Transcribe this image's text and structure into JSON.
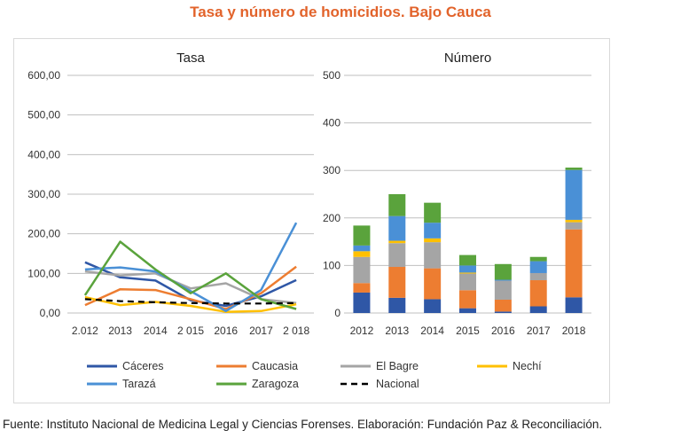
{
  "title": "Tasa y número de homicidios. Bajo Cauca",
  "title_color": "#e2632b",
  "source": "Fuente: Instituto Nacional de Medicina Legal y Ciencias Forenses. Elaboración: Fundación Paz & Reconciliación.",
  "chart_data": [
    {
      "type": "line",
      "title": "Tasa",
      "categories": [
        "2.012",
        "2013",
        "2014",
        "2 015",
        "2016",
        "2017",
        "2 018"
      ],
      "ylim": [
        0,
        600
      ],
      "yticks": [
        0,
        100,
        200,
        300,
        400,
        500,
        600
      ],
      "ytick_labels": [
        "0,00",
        "100,00",
        "200,00",
        "300,00",
        "400,00",
        "500,00",
        "600,00"
      ],
      "grid": true,
      "series": [
        {
          "name": "Cáceres",
          "color": "#2f57a6",
          "dash": false,
          "values": [
            128,
            90,
            82,
            32,
            18,
            42,
            83
          ]
        },
        {
          "name": "Caucasia",
          "color": "#ed7d31",
          "dash": false,
          "values": [
            20,
            60,
            58,
            35,
            10,
            50,
            117
          ]
        },
        {
          "name": "El Bagre",
          "color": "#a5a5a5",
          "dash": false,
          "values": [
            105,
            95,
            100,
            62,
            75,
            35,
            25
          ]
        },
        {
          "name": "Nechí",
          "color": "#ffc000",
          "dash": false,
          "values": [
            40,
            20,
            28,
            18,
            3,
            5,
            22
          ]
        },
        {
          "name": "Tarazá",
          "color": "#4a90d6",
          "dash": false,
          "values": [
            110,
            115,
            105,
            55,
            5,
            58,
            228
          ]
        },
        {
          "name": "Zaragoza",
          "color": "#5aa33c",
          "dash": false,
          "values": [
            45,
            180,
            110,
            50,
            100,
            35,
            10
          ]
        },
        {
          "name": "Nacional",
          "color": "#000000",
          "dash": true,
          "values": [
            35,
            30,
            27,
            25,
            24,
            24,
            25
          ]
        }
      ]
    },
    {
      "type": "bar",
      "stacked": true,
      "title": "Número",
      "categories": [
        "2012",
        "2013",
        "2014",
        "2015",
        "2016",
        "2017",
        "2018"
      ],
      "ylim": [
        0,
        500
      ],
      "yticks": [
        0,
        100,
        200,
        300,
        400,
        500
      ],
      "grid": true,
      "series": [
        {
          "name": "Cáceres",
          "color": "#2f57a6",
          "values": [
            43,
            32,
            29,
            10,
            3,
            14,
            33
          ]
        },
        {
          "name": "Caucasia",
          "color": "#ed7d31",
          "values": [
            20,
            65,
            65,
            38,
            25,
            55,
            143
          ]
        },
        {
          "name": "El Bagre",
          "color": "#a5a5a5",
          "values": [
            55,
            50,
            55,
            35,
            40,
            15,
            15
          ]
        },
        {
          "name": "Nechí",
          "color": "#ffc000",
          "values": [
            12,
            5,
            8,
            2,
            0,
            0,
            5
          ]
        },
        {
          "name": "Tarazá",
          "color": "#4a90d6",
          "values": [
            12,
            52,
            33,
            15,
            2,
            25,
            105
          ]
        },
        {
          "name": "Zaragoza",
          "color": "#5aa33c",
          "values": [
            42,
            46,
            42,
            22,
            33,
            9,
            5
          ]
        }
      ]
    }
  ],
  "legend": [
    {
      "name": "Cáceres",
      "color": "#2f57a6",
      "dash": false
    },
    {
      "name": "Caucasia",
      "color": "#ed7d31",
      "dash": false
    },
    {
      "name": "El Bagre",
      "color": "#a5a5a5",
      "dash": false
    },
    {
      "name": "Nechí",
      "color": "#ffc000",
      "dash": false
    },
    {
      "name": "Tarazá",
      "color": "#4a90d6",
      "dash": false
    },
    {
      "name": "Zaragoza",
      "color": "#5aa33c",
      "dash": false
    },
    {
      "name": "Nacional",
      "color": "#000000",
      "dash": true
    }
  ]
}
